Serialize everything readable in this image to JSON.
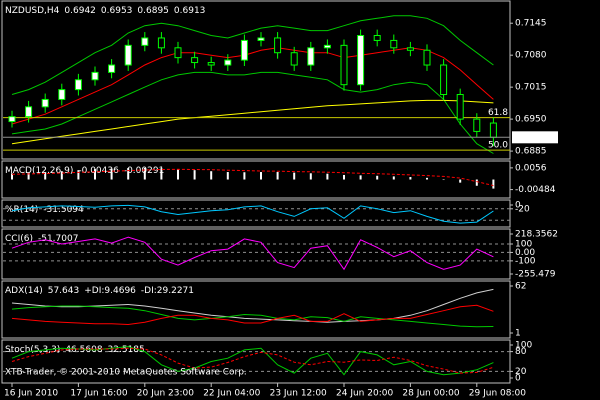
{
  "chart_data": [
    {
      "type": "candlestick",
      "title": "NZDUSD,H4",
      "x": [
        0,
        1,
        2,
        3,
        4,
        5,
        6,
        7,
        8,
        9,
        10,
        11,
        12,
        13,
        14,
        15,
        16,
        17,
        18,
        19,
        20,
        21,
        22,
        23,
        24,
        25,
        26,
        27,
        28,
        29
      ],
      "open": [
        0.6945,
        0.6955,
        0.6975,
        0.699,
        0.701,
        0.703,
        0.7045,
        0.706,
        0.71,
        0.7115,
        0.7095,
        0.7075,
        0.7065,
        0.706,
        0.707,
        0.711,
        0.7115,
        0.7085,
        0.706,
        0.7095,
        0.71,
        0.702,
        0.712,
        0.711,
        0.7095,
        0.709,
        0.706,
        0.7,
        0.695,
        0.6942
      ],
      "high": [
        0.6967,
        0.6987,
        0.7002,
        0.7022,
        0.7042,
        0.7057,
        0.7072,
        0.7112,
        0.7127,
        0.7127,
        0.7107,
        0.7087,
        0.7077,
        0.7082,
        0.7122,
        0.7127,
        0.7127,
        0.7097,
        0.7107,
        0.7112,
        0.7112,
        0.7132,
        0.7132,
        0.7122,
        0.7107,
        0.7102,
        0.7072,
        0.7012,
        0.6962,
        0.6953
      ],
      "low": [
        0.6933,
        0.6943,
        0.6963,
        0.6978,
        0.6998,
        0.7018,
        0.7033,
        0.7048,
        0.7088,
        0.7083,
        0.7063,
        0.7053,
        0.7048,
        0.7048,
        0.7058,
        0.7098,
        0.7073,
        0.7048,
        0.7048,
        0.7083,
        0.7008,
        0.7008,
        0.7098,
        0.7083,
        0.7078,
        0.7048,
        0.6988,
        0.6938,
        0.6913,
        0.6895
      ],
      "close": [
        0.6955,
        0.6975,
        0.699,
        0.701,
        0.703,
        0.7045,
        0.706,
        0.71,
        0.7115,
        0.7095,
        0.7075,
        0.7065,
        0.706,
        0.707,
        0.711,
        0.7115,
        0.7085,
        0.706,
        0.7095,
        0.71,
        0.702,
        0.712,
        0.711,
        0.7095,
        0.709,
        0.706,
        0.7,
        0.695,
        0.6925,
        0.6913
      ],
      "up_color": "#ffffff",
      "down_color": "#000000",
      "wick_color": "#00ff00",
      "series": [
        {
          "color": "#00c800",
          "values": [
            0.7,
            0.701,
            0.7025,
            0.7045,
            0.7065,
            0.7085,
            0.71,
            0.7125,
            0.714,
            0.7145,
            0.714,
            0.713,
            0.712,
            0.7115,
            0.7125,
            0.7135,
            0.714,
            0.7135,
            0.713,
            0.713,
            0.714,
            0.715,
            0.7155,
            0.716,
            0.716,
            0.7155,
            0.714,
            0.711,
            0.7085,
            0.706
          ]
        },
        {
          "color": "#00c800",
          "values": [
            0.692,
            0.6925,
            0.693,
            0.694,
            0.6955,
            0.697,
            0.6985,
            0.7,
            0.7015,
            0.703,
            0.704,
            0.7045,
            0.7045,
            0.704,
            0.704,
            0.7045,
            0.7045,
            0.704,
            0.7035,
            0.703,
            0.701,
            0.7005,
            0.701,
            0.702,
            0.7025,
            0.702,
            0.699,
            0.694,
            0.69,
            0.688
          ]
        },
        {
          "color": "#ff0000",
          "values": [
            0.694,
            0.695,
            0.696,
            0.6975,
            0.699,
            0.7005,
            0.702,
            0.704,
            0.706,
            0.7075,
            0.7085,
            0.7085,
            0.708,
            0.7075,
            0.708,
            0.709,
            0.7095,
            0.709,
            0.7085,
            0.7085,
            0.7075,
            0.708,
            0.7085,
            0.709,
            0.7095,
            0.709,
            0.7075,
            0.705,
            0.702,
            0.699
          ]
        },
        {
          "color": "#ffff00",
          "values": [
            0.69,
            0.6905,
            0.691,
            0.6915,
            0.692,
            0.6925,
            0.693,
            0.6935,
            0.694,
            0.6945,
            0.695,
            0.6953,
            0.6956,
            0.6959,
            0.6962,
            0.6965,
            0.6968,
            0.6971,
            0.6974,
            0.6977,
            0.6979,
            0.6981,
            0.6983,
            0.6985,
            0.6987,
            0.6988,
            0.6988,
            0.6987,
            0.6985,
            0.6983
          ]
        }
      ],
      "fib": [
        {
          "level": 61.8,
          "price": 0.6953
        },
        {
          "level": {
            "value": 50,
            "label": "50.0"
          },
          "price": 0.6887
        }
      ],
      "fib_color": "#c8c800",
      "ylim": [
        0.6875,
        0.718
      ],
      "yticks": [
        0.7145,
        {
          "value": 0.708,
          "label": "0.7080"
        },
        0.7015,
        {
          "value": 0.695,
          "label": "0.6950"
        },
        0.6885
      ],
      "xticks": [
        {
          "value": 0,
          "label": "16 Jun 2010"
        },
        {
          "value": 4,
          "label": "17 Jun 16:00"
        },
        {
          "value": 8,
          "label": "20 Jun 23:00"
        },
        {
          "value": 12,
          "label": "22 Jun 04:00"
        },
        {
          "value": 16,
          "label": "23 Jun 12:00"
        },
        {
          "value": 20,
          "label": "24 Jun 20:00"
        },
        {
          "value": 24,
          "label": "28 Jun 00:00"
        },
        {
          "value": 28,
          "label": "29 Jun 08:00"
        }
      ]
    },
    {
      "type": "macd",
      "title": "MACD(12,26,9)",
      "series": [
        {
          "color": "#ffffff",
          "values": [
            0.003,
            0.0032,
            0.0035,
            0.004,
            0.0045,
            0.005,
            0.0052,
            0.0055,
            0.0056,
            0.0054,
            0.005,
            0.0045,
            0.004,
            0.0036,
            0.0035,
            0.0036,
            0.0036,
            0.0033,
            0.003,
            0.0028,
            0.0022,
            0.002,
            0.0018,
            0.0015,
            0.0012,
            0.0008,
            0.0,
            -0.0015,
            -0.003,
            -0.00436
          ]
        },
        {
          "color": "#ff0000",
          "values": [
            0.0025,
            0.0027,
            0.0029,
            0.0031,
            0.0034,
            0.0037,
            0.004,
            0.0043,
            0.0046,
            0.0048,
            0.0049,
            0.0048,
            0.0047,
            0.0045,
            0.0043,
            0.0041,
            0.004,
            0.0038,
            0.0037,
            0.0035,
            0.0033,
            0.003,
            0.0028,
            0.0025,
            0.0022,
            0.0019,
            0.0015,
            0.0007,
            -0.001,
            -0.00291
          ]
        }
      ],
      "ylim": [
        -0.006,
        0.0065
      ],
      "yticks": [
        0.0056,
        -0.00484
      ]
    },
    {
      "type": "line",
      "title": "%R(14)",
      "series": [
        {
          "color": "#00c8ff",
          "values": [
            -30,
            -15,
            -10,
            -5,
            -8,
            -12,
            -5,
            -2,
            -10,
            -35,
            -50,
            -40,
            -30,
            -25,
            -10,
            -5,
            -35,
            -60,
            -20,
            -15,
            -70,
            -5,
            -20,
            -40,
            -30,
            -60,
            -85,
            -95,
            -90,
            -31.5094
          ]
        }
      ],
      "ylim": [
        -100,
        0
      ],
      "yticks": [
        0,
        -20
      ],
      "levels": [
        -20,
        -80
      ]
    },
    {
      "type": "line",
      "title": "CCI(6)",
      "series": [
        {
          "color": "#ff00ff",
          "values": [
            50,
            120,
            150,
            100,
            130,
            160,
            110,
            180,
            120,
            -80,
            -150,
            -60,
            20,
            40,
            160,
            120,
            -120,
            -180,
            50,
            80,
            -200,
            150,
            60,
            -50,
            20,
            -120,
            -200,
            -150,
            40,
            -51.7007
          ]
        }
      ],
      "ylim": [
        -255.479,
        218.3562
      ],
      "yticks": [
        218.3562,
        100,
        {
          "value": 0,
          "label": "0.00"
        },
        -100,
        -255.479
      ],
      "levels": [
        100,
        0,
        -100
      ]
    },
    {
      "type": "line",
      "title": "ADX(14)",
      "series": [
        {
          "color": "#d0d0d0",
          "values": [
            40,
            38,
            36,
            35,
            35,
            36,
            37,
            38,
            36,
            33,
            30,
            27,
            24,
            22,
            20,
            19,
            18,
            17,
            16,
            15,
            16,
            17,
            18,
            20,
            24,
            30,
            38,
            46,
            53,
            57.643
          ]
        },
        {
          "name": "+DI:",
          "color": "#00c800",
          "values": [
            32,
            34,
            35,
            36,
            36,
            35,
            34,
            33,
            30,
            25,
            20,
            18,
            20,
            22,
            25,
            24,
            20,
            18,
            22,
            21,
            16,
            22,
            20,
            18,
            16,
            14,
            12,
            10,
            9,
            9.4696
          ]
        },
        {
          "name": "-DI:",
          "color": "#ff0000",
          "values": [
            20,
            18,
            16,
            15,
            14,
            13,
            13,
            12,
            15,
            20,
            24,
            24,
            20,
            18,
            14,
            14,
            20,
            24,
            16,
            16,
            26,
            16,
            18,
            20,
            20,
            25,
            30,
            35,
            37,
            29.2271
          ]
        }
      ],
      "ylim": [
        1,
        62
      ],
      "yticks": [
        62,
        1
      ]
    },
    {
      "type": "line",
      "title": "Stoch(5,3,3)",
      "series": [
        {
          "color": "#00c800",
          "values": [
            60,
            80,
            85,
            90,
            88,
            85,
            90,
            95,
            80,
            40,
            20,
            30,
            50,
            60,
            85,
            90,
            40,
            15,
            60,
            75,
            10,
            80,
            70,
            40,
            50,
            20,
            10,
            15,
            25,
            46.5608
          ]
        },
        {
          "color": "#ff0000",
          "dashed": true,
          "values": [
            50,
            65,
            75,
            85,
            88,
            88,
            88,
            90,
            88,
            70,
            45,
            30,
            33,
            47,
            65,
            78,
            70,
            48,
            40,
            50,
            48,
            55,
            53,
            63,
            53,
            37,
            27,
            15,
            17,
            32.5185
          ]
        }
      ],
      "ylim": [
        0,
        100
      ],
      "yticks": [
        100,
        80,
        20,
        0
      ],
      "levels": [
        80,
        20
      ]
    }
  ],
  "copyright": "XTB-Trader, © 2001-2010 MetaQuotes Software Corp."
}
